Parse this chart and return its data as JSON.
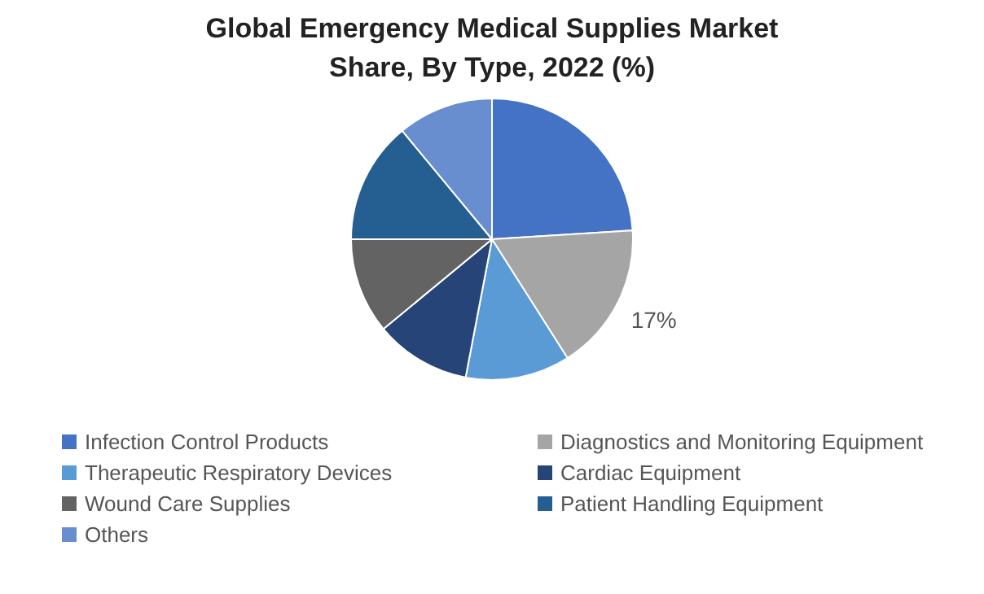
{
  "chart_data": {
    "type": "pie",
    "title": "Global Emergency Medical Supplies Market Share, By Type, 2022 (%)",
    "categories": [
      "Infection Control Products",
      "Diagnostics and Monitoring Equipment",
      "Therapeutic Respiratory Devices",
      "Cardiac Equipment",
      "Wound Care Supplies",
      "Patient Handling Equipment",
      "Others"
    ],
    "values": [
      24,
      17,
      12,
      11,
      11,
      14,
      11
    ],
    "colors": [
      "#4472c4",
      "#a5a5a5",
      "#5b9bd5",
      "#264478",
      "#636363",
      "#255e91",
      "#698ed0"
    ],
    "value_labels": [
      null,
      "17%",
      null,
      null,
      null,
      null,
      null
    ],
    "legend": "bottom"
  }
}
